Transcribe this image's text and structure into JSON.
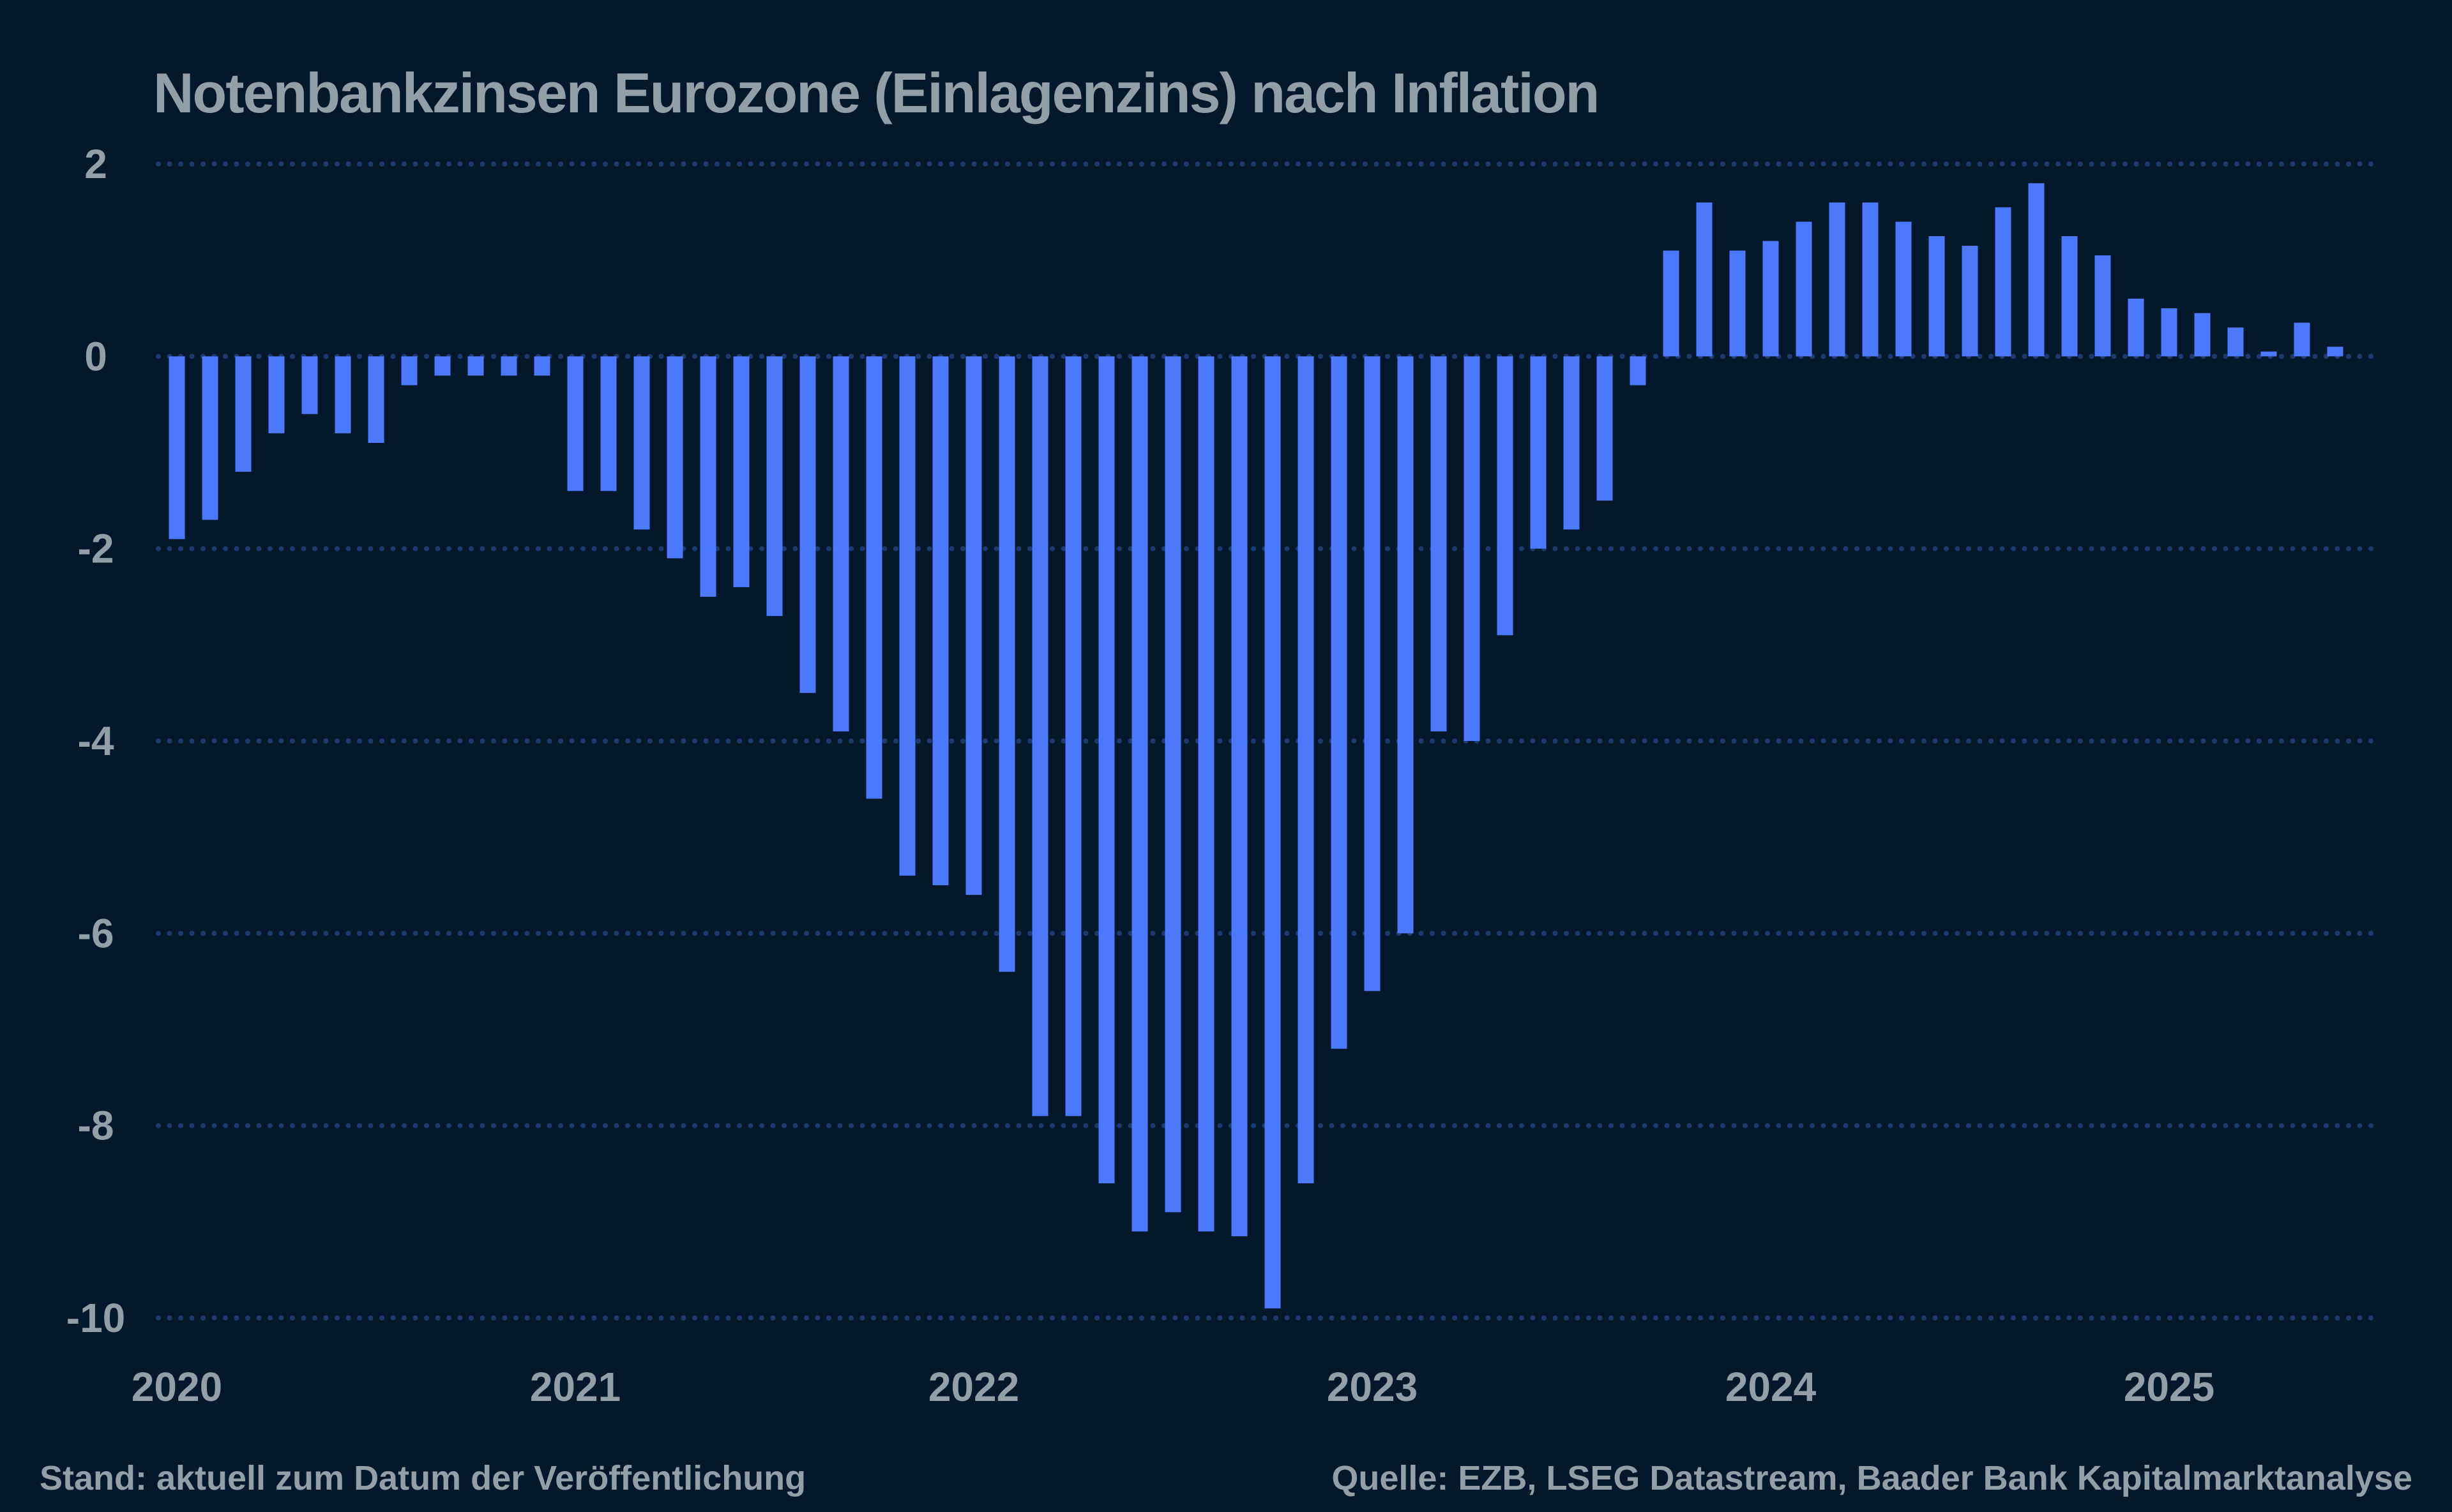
{
  "chart_data": {
    "type": "bar",
    "title": "Notenbankzinsen Eurozone (Einlagenzins) nach Inflation",
    "xlabel": "",
    "ylabel": "",
    "ylim": [
      -10,
      2
    ],
    "yticks": [
      2,
      0,
      -2,
      -4,
      -6,
      -8,
      -10
    ],
    "xtick_labels": [
      "2020",
      "2021",
      "2022",
      "2023",
      "2024",
      "2025"
    ],
    "x_start": "2020-01",
    "x_frequency": "monthly",
    "grid": "horizontal dotted",
    "colors": {
      "background": "#03182b",
      "bar": "#4d79ff",
      "grid": "#1c3a6e",
      "text": "#929fa6"
    },
    "values": [
      -1.9,
      -1.7,
      -1.2,
      -0.8,
      -0.6,
      -0.8,
      -0.9,
      -0.3,
      -0.2,
      -0.2,
      -0.2,
      -0.2,
      -1.4,
      -1.4,
      -1.8,
      -2.1,
      -2.5,
      -2.4,
      -2.7,
      -3.5,
      -3.9,
      -4.6,
      -5.4,
      -5.5,
      -5.6,
      -6.4,
      -7.9,
      -7.9,
      -8.6,
      -9.1,
      -8.9,
      -9.1,
      -9.15,
      -9.9,
      -8.6,
      -7.2,
      -6.6,
      -6.0,
      -3.9,
      -4.0,
      -2.9,
      -2.0,
      -1.8,
      -1.5,
      -0.3,
      1.1,
      1.6,
      1.1,
      1.2,
      1.4,
      1.6,
      1.6,
      1.4,
      1.25,
      1.15,
      1.55,
      1.8,
      1.25,
      1.05,
      0.6,
      0.5,
      0.45,
      0.3,
      0.05,
      0.35,
      0.1
    ]
  },
  "footer": {
    "left": "Stand: aktuell zum Datum der Veröffentlichung",
    "right": "Quelle: EZB, LSEG Datastream, Baader Bank Kapitalmarktanalyse"
  }
}
